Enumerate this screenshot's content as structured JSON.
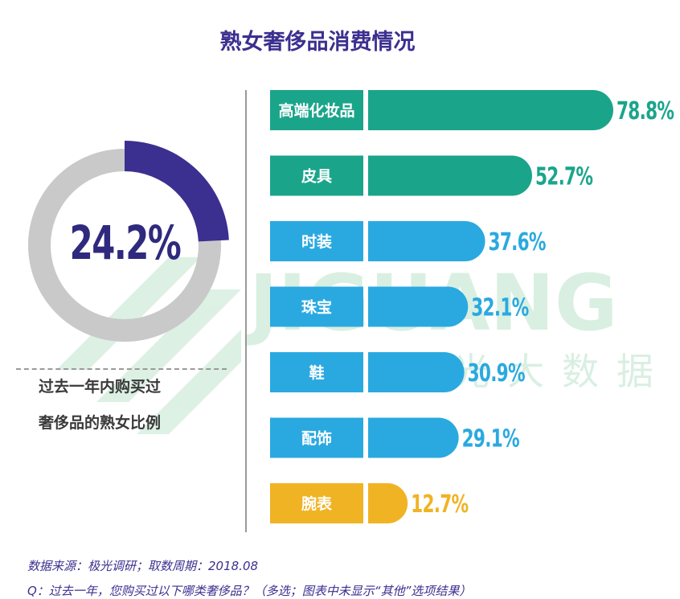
{
  "title": "熟女奢侈品消费情况",
  "donut": {
    "value": 24.2,
    "label": "24.2%",
    "caption_line1": "过去一年内购买过",
    "caption_line2": "奢侈品的熟女比例",
    "colors": {
      "filled": "#3b2f8f",
      "rest": "#c9c9c9"
    }
  },
  "watermark": {
    "text_en": "JIGUANG",
    "text_cn": "极光大数据",
    "color": "#d9efe2"
  },
  "chart_data": {
    "type": "bar",
    "categories": [
      "高端化妆品",
      "皮具",
      "时装",
      "珠宝",
      "鞋",
      "配饰",
      "腕表"
    ],
    "values": [
      78.8,
      52.7,
      37.6,
      32.1,
      30.9,
      29.1,
      12.7
    ],
    "value_labels": [
      "78.8%",
      "52.7%",
      "37.6%",
      "32.1%",
      "30.9%",
      "29.1%",
      "12.7%"
    ],
    "colors": [
      "#1aa58b",
      "#1aa58b",
      "#2aa9e0",
      "#2aa9e0",
      "#2aa9e0",
      "#2aa9e0",
      "#f0b323"
    ],
    "xlim": [
      0,
      80
    ]
  },
  "footnote": {
    "source": "数据来源：极光调研；取数周期：2018.08",
    "question": "Q：过去一年，您购买过以下哪类奢侈品？（多选；图表中未显示“其他”选项结果）"
  }
}
